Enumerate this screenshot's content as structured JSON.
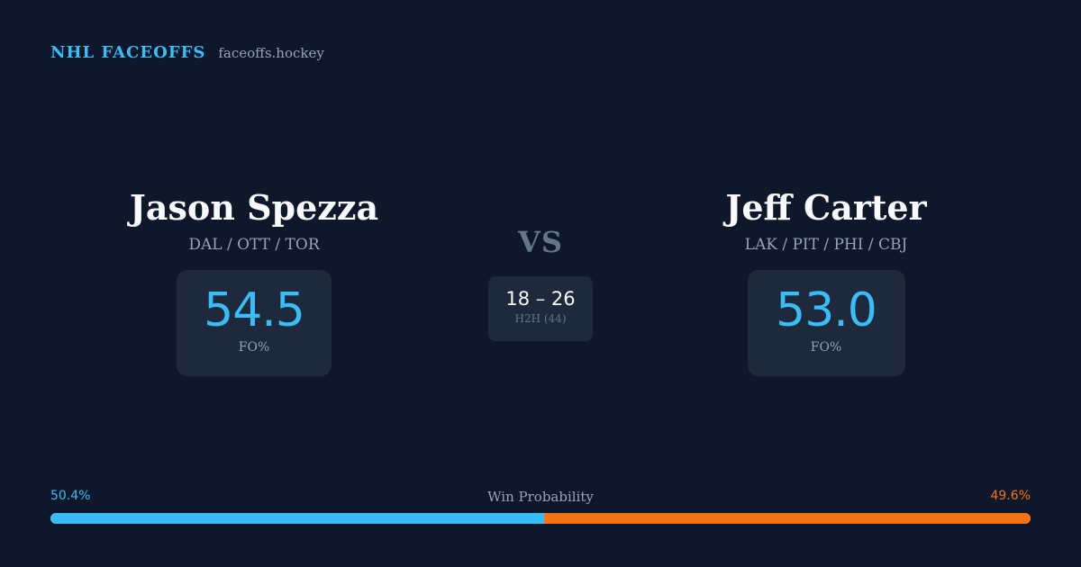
{
  "brand": {
    "title": "NHL FACEOFFS",
    "site": "faceoffs.hockey"
  },
  "players": [
    {
      "name": "Jason Spezza",
      "teams": "DAL / OTT / TOR",
      "fo_value": "54.5",
      "fo_label": "FO%"
    },
    {
      "name": "Jeff Carter",
      "teams": "LAK / PIT / PHI / CBJ",
      "fo_value": "53.0",
      "fo_label": "FO%"
    }
  ],
  "matchup": {
    "vs_label": "VS",
    "h2h_score": "18 – 26",
    "h2h_label": "H2H (44)"
  },
  "win_probability": {
    "title": "Win Probability",
    "left_label": "50.4%",
    "right_label": "49.6%",
    "left_fraction": 0.504,
    "right_fraction": 0.496
  },
  "colors": {
    "background": "#0f172a",
    "card": "#1e293b",
    "accent_blue": "#38bdf8",
    "accent_orange": "#f97316",
    "muted": "#94a3b8"
  }
}
